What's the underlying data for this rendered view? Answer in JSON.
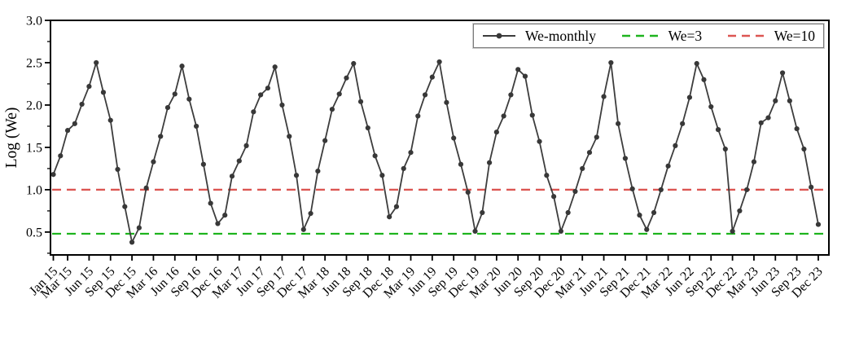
{
  "figure": {
    "background": "#ffffff"
  },
  "chart_data": {
    "type": "line",
    "title": "",
    "xlabel": "",
    "ylabel": "Log (We)",
    "ylim": [
      0.23,
      3.0
    ],
    "grid": "off",
    "y_major_ticks": [
      0.5,
      1.0,
      1.5,
      2.0,
      2.5,
      3.0
    ],
    "y_tick_labels": [
      "0.5",
      "1.0",
      "1.5",
      "2.0",
      "2.5",
      "3.0"
    ],
    "y_minor_tick_step": 0.25,
    "x_tick_labels": [
      "Jan 15",
      "Mar 15",
      "Jun 15",
      "Sep 15",
      "Dec 15",
      "Mar 16",
      "Jun 16",
      "Sep 16",
      "Dec 16",
      "Mar 17",
      "Jun 17",
      "Sep 17",
      "Dec 17",
      "Mar 18",
      "Jun 18",
      "Sep 18",
      "Dec 18",
      "Mar 19",
      "Jun 19",
      "Sep 19",
      "Dec 19",
      "Mar 20",
      "Jun 20",
      "Sep 20",
      "Dec 20",
      "Mar 21",
      "Jun 21",
      "Sep 21",
      "Dec 21",
      "Mar 22",
      "Jun 22",
      "Sep 22",
      "Dec 22",
      "Mar 23",
      "Jun 23",
      "Sep 23",
      "Dec 23"
    ],
    "x_tick_indices": [
      0,
      2,
      5,
      8,
      11,
      14,
      17,
      20,
      23,
      26,
      29,
      32,
      35,
      38,
      41,
      44,
      47,
      50,
      53,
      56,
      59,
      62,
      65,
      68,
      71,
      74,
      77,
      80,
      83,
      86,
      89,
      92,
      95,
      98,
      101,
      104,
      107
    ],
    "series": [
      {
        "name": "We-monthly",
        "color": "#3d3d3d",
        "marker": "circle",
        "marker_color": "#383838",
        "values": [
          1.18,
          1.4,
          1.7,
          1.78,
          2.01,
          2.22,
          2.5,
          2.15,
          1.82,
          1.24,
          0.8,
          0.38,
          0.55,
          1.02,
          1.33,
          1.63,
          1.97,
          2.13,
          2.46,
          2.07,
          1.75,
          1.3,
          0.84,
          0.6,
          0.7,
          1.16,
          1.34,
          1.52,
          1.92,
          2.12,
          2.2,
          2.45,
          2.0,
          1.63,
          1.17,
          0.53,
          0.72,
          1.22,
          1.58,
          1.95,
          2.13,
          2.32,
          2.49,
          2.04,
          1.73,
          1.4,
          1.17,
          0.68,
          0.8,
          1.25,
          1.44,
          1.87,
          2.12,
          2.33,
          2.51,
          2.03,
          1.61,
          1.3,
          0.97,
          0.51,
          0.73,
          1.32,
          1.68,
          1.87,
          2.12,
          2.42,
          2.34,
          1.88,
          1.57,
          1.17,
          0.92,
          0.51,
          0.73,
          0.98,
          1.25,
          1.44,
          1.62,
          2.1,
          2.5,
          1.78,
          1.37,
          1.01,
          0.7,
          0.53,
          0.73,
          1.0,
          1.28,
          1.52,
          1.78,
          2.09,
          2.49,
          2.3,
          1.98,
          1.71,
          1.48,
          0.51,
          0.75,
          1.0,
          1.33,
          1.79,
          1.85,
          2.05,
          2.38,
          2.05,
          1.72,
          1.48,
          1.03,
          0.59
        ]
      }
    ],
    "reference_lines": [
      {
        "name": "We=3",
        "value": 0.48,
        "color": "#1eb41e",
        "style": "dashed"
      },
      {
        "name": "We=10",
        "value": 1.0,
        "color": "#dc5652",
        "style": "dashed"
      }
    ],
    "legend": {
      "position": "top-right"
    }
  }
}
